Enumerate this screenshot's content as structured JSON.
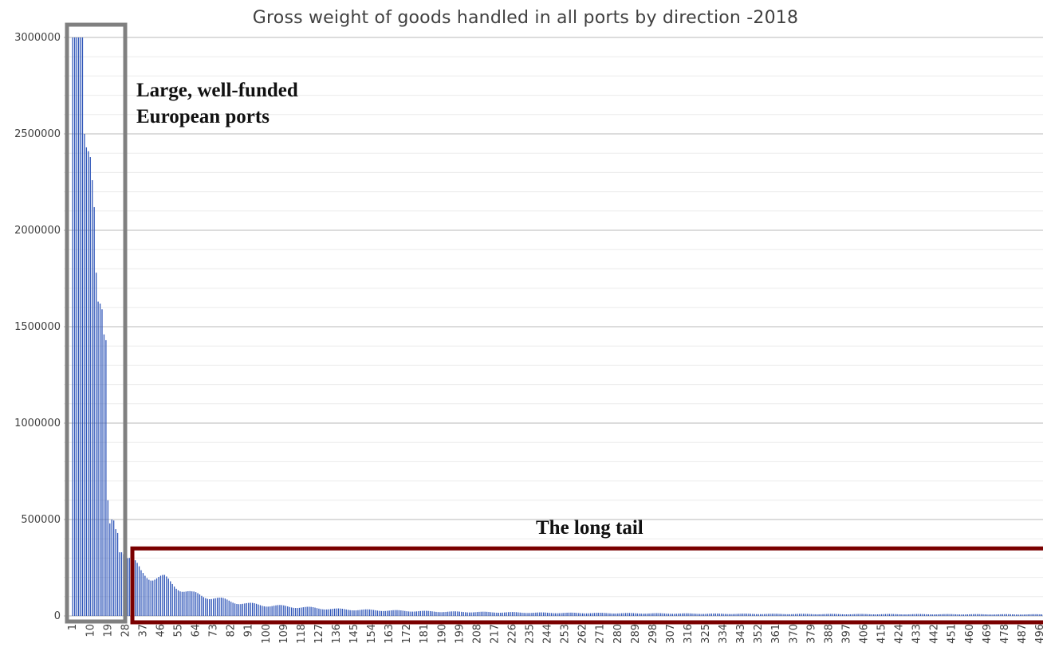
{
  "chart_data": {
    "type": "bar",
    "title": "Gross weight of goods handled in all ports by direction -2018",
    "xlabel": "",
    "ylabel": "",
    "ylim": [
      0,
      3000000
    ],
    "y_ticks": [
      0,
      500000,
      1000000,
      1500000,
      2000000,
      2500000,
      3000000
    ],
    "y_tick_labels": [
      "0",
      "500000",
      "1000000",
      "1500000",
      "2000000",
      "2500000",
      "3000000"
    ],
    "x_tick_labels": [
      "1",
      "10",
      "19",
      "28",
      "37",
      "46",
      "55",
      "64",
      "73",
      "82",
      "91",
      "100",
      "109",
      "118",
      "127",
      "136",
      "145",
      "154",
      "163",
      "172",
      "181",
      "190",
      "199",
      "208",
      "217",
      "226",
      "235",
      "244",
      "253",
      "262",
      "271",
      "280",
      "289",
      "298",
      "307",
      "316",
      "325",
      "334",
      "343",
      "352",
      "361",
      "370",
      "379",
      "388",
      "397",
      "406",
      "415",
      "424",
      "433",
      "442",
      "451",
      "460",
      "469",
      "478",
      "487",
      "496"
    ],
    "x_tick_step": 9,
    "n_bars": 500,
    "bar_color": "#2e55b8",
    "grid": true,
    "head_values": [
      3000000,
      3000000,
      3000000,
      3000000,
      3000000,
      3000000,
      2500000,
      2430000,
      2410000,
      2380000,
      2260000,
      2120000,
      1780000,
      1630000,
      1620000,
      1590000,
      1460000,
      1430000,
      600000,
      480000,
      500000,
      495000,
      450000,
      430000,
      330000,
      330000,
      320000,
      315000
    ],
    "tail_model": {
      "description_values": "tail bars from index 29 onward decay from about 310000 to about 8000",
      "start_value": 310000,
      "points": [
        [
          29,
          310000
        ],
        [
          32,
          270000
        ],
        [
          36,
          225000
        ],
        [
          42,
          205000
        ],
        [
          48,
          190000
        ],
        [
          55,
          150000
        ],
        [
          62,
          115000
        ],
        [
          73,
          95000
        ],
        [
          82,
          75000
        ],
        [
          91,
          62000
        ],
        [
          100,
          55000
        ],
        [
          118,
          45000
        ],
        [
          136,
          35000
        ],
        [
          154,
          30000
        ],
        [
          172,
          26000
        ],
        [
          190,
          22000
        ],
        [
          208,
          20000
        ],
        [
          226,
          18000
        ],
        [
          244,
          16000
        ],
        [
          262,
          15000
        ],
        [
          280,
          14000
        ],
        [
          298,
          13000
        ],
        [
          316,
          12000
        ],
        [
          334,
          11000
        ],
        [
          352,
          10500
        ],
        [
          370,
          10000
        ],
        [
          388,
          9500
        ],
        [
          406,
          9200
        ],
        [
          424,
          9000
        ],
        [
          442,
          8800
        ],
        [
          460,
          8500
        ],
        [
          478,
          8200
        ],
        [
          500,
          8000
        ]
      ]
    },
    "annotations": [
      {
        "text_lines": [
          "Large, well-funded",
          "European ports"
        ],
        "box_color": "#808080",
        "covers_bars": [
          1,
          28
        ]
      },
      {
        "text_lines": [
          "The long tail"
        ],
        "box_color": "#7a0000",
        "covers_bars": [
          29,
          500
        ],
        "box_top_value": 350000
      }
    ]
  }
}
